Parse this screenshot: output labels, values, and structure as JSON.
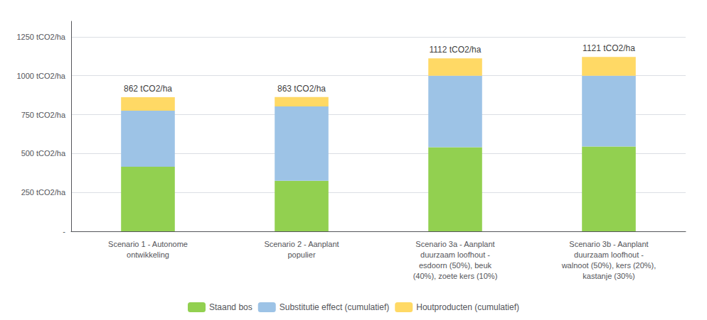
{
  "chart_data": {
    "type": "bar",
    "stacked": true,
    "categories": [
      "Scenario 1 - Autonome\nontwikkeling",
      "Scenario 2 - Aanplant\npopulier",
      "Scenario 3a - Aanplant\nduurzaam loofhout -\nesdoorn (50%), beuk\n(40%), zoete kers (10%)",
      "Scenario 3b - Aanplant\nduurzaam loofhout -\nwalnoot (50%), kers (20%),\nkastanje (30%)"
    ],
    "series": [
      {
        "name": "Staand bos",
        "color": "#92D050",
        "values": [
          415,
          325,
          540,
          545
        ]
      },
      {
        "name": "Substitutie effect (cumulatief)",
        "color": "#9DC3E6",
        "values": [
          360,
          478,
          460,
          455
        ]
      },
      {
        "name": "Houtproducten (cumulatief)",
        "color": "#FFD965",
        "values": [
          87,
          60,
          112,
          121
        ]
      }
    ],
    "annotations": [
      {
        "category": "Scenario 1 - Autonome\nontwikkeling",
        "value": 862,
        "text": "862 tCO2/ha"
      },
      {
        "category": "Scenario 2 - Aanplant\npopulier",
        "value": 863,
        "text": "863 tCO2/ha"
      },
      {
        "category": "Scenario 3a - Aanplant\nduurzaam loofhout -\nesdoorn (50%), beuk\n(40%), zoete kers (10%)",
        "value": 1112,
        "text": "1112 tCO2/ha"
      },
      {
        "category": "Scenario 3b - Aanplant\nduurzaam loofhout -\nwalnoot (50%), kers (20%),\nkastanje (30%)",
        "value": 1121,
        "text": "1121 tCO2/ha"
      }
    ],
    "ylim": [
      0,
      1350
    ],
    "yticks": [
      {
        "value": 0,
        "label": "-"
      },
      {
        "value": 250,
        "label": "250 tCO2/ha"
      },
      {
        "value": 500,
        "label": "500 tCO2/ha"
      },
      {
        "value": 750,
        "label": "750 tCO2/ha"
      },
      {
        "value": 1000,
        "label": "1000 tCO2/ha"
      },
      {
        "value": 1250,
        "label": "1250 tCO2/ha"
      }
    ],
    "grid": true,
    "legend": "bottom"
  }
}
